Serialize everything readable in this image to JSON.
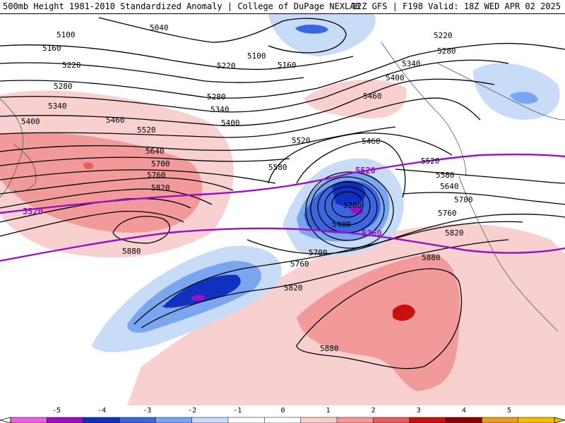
{
  "header": {
    "title_left": "500mb Height 1981-2010 Standardized Anomaly | College of DuPage NEXLAB",
    "title_right": "12Z GFS | F198 Valid: 18Z WED APR 02 2025"
  },
  "map": {
    "contour_labels": [
      "5040",
      "5100",
      "5160",
      "5220",
      "5280",
      "5340",
      "5400",
      "5460",
      "5520",
      "5640",
      "5700",
      "5760",
      "5820",
      "5880",
      "5580",
      "5280",
      "5400",
      "5460",
      "5520",
      "5580",
      "5640",
      "5700",
      "5760",
      "5820",
      "5880",
      "5880",
      "5220",
      "5280",
      "5340",
      "5400",
      "5460",
      "5100",
      "5160",
      "5220",
      "5280",
      "5340",
      "5400",
      "5520",
      "5700",
      "5760",
      "5820"
    ],
    "purple_labels": [
      "5520",
      "5520",
      "5760"
    ],
    "colors": {
      "contour": "#000000",
      "purple_contour": "#9a10c8",
      "land_outline": "#555555"
    }
  },
  "colorbar": {
    "tick_labels": [
      "-5",
      "-4",
      "-3",
      "-2",
      "-1",
      "0",
      "1",
      "2",
      "3",
      "4",
      "5"
    ],
    "colors": [
      "#e85fe0",
      "#9a10c8",
      "#1030c0",
      "#3a66e0",
      "#7aa6f0",
      "#c8dcf8",
      "#ffffff",
      "#ffffff",
      "#f8d0d0",
      "#f29a9a",
      "#e85c5c",
      "#c81010",
      "#8a0000",
      "#e8a020",
      "#f0c000"
    ]
  }
}
